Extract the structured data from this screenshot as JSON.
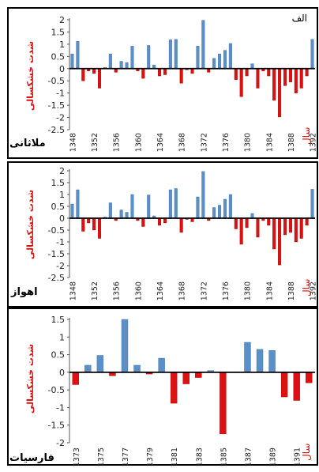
{
  "chart_data": [
    {
      "type": "bar",
      "panel_label": "الف",
      "station": "ملاثانی",
      "ylabel": "شدت خشکسالی",
      "xlabel": "سال",
      "ylim": [
        -2.5,
        2
      ],
      "yticks": [
        2,
        1.5,
        1,
        0.5,
        0,
        -0.5,
        -1,
        -1.5,
        -2,
        -2.5
      ],
      "x_tick_labels": [
        "1348",
        "1352",
        "1356",
        "1360",
        "1364",
        "1368",
        "1372",
        "1376",
        "1380",
        "1384",
        "1388",
        "1392"
      ],
      "colors": {
        "positive": "#5b8fc7",
        "negative": "#dd1111"
      },
      "x": [
        1348,
        1349,
        1350,
        1351,
        1352,
        1353,
        1354,
        1355,
        1356,
        1357,
        1358,
        1359,
        1360,
        1361,
        1362,
        1363,
        1364,
        1365,
        1366,
        1367,
        1368,
        1369,
        1370,
        1371,
        1372,
        1373,
        1374,
        1375,
        1376,
        1377,
        1378,
        1379,
        1380,
        1381,
        1382,
        1383,
        1384,
        1385,
        1386,
        1387,
        1388,
        1389,
        1390,
        1391,
        1392
      ],
      "values": [
        0.6,
        1.12,
        -0.5,
        -0.1,
        -0.2,
        -0.8,
        0.05,
        0.6,
        -0.15,
        0.3,
        0.25,
        0.92,
        -0.1,
        -0.4,
        0.95,
        0.15,
        -0.3,
        -0.25,
        1.18,
        1.2,
        -0.6,
        -0.05,
        -0.2,
        0.92,
        1.98,
        -0.15,
        0.42,
        0.6,
        0.75,
        1.03,
        -0.45,
        -1.15,
        -0.3,
        0.2,
        -0.8,
        -0.1,
        -0.3,
        -1.3,
        -1.98,
        -0.7,
        -0.55,
        -1.0,
        -0.8,
        -0.3,
        1.2
      ]
    },
    {
      "type": "bar",
      "panel_label": "",
      "station": "اهواز",
      "ylabel": "شدت خشکسالی",
      "xlabel": "سال",
      "ylim": [
        -2.5,
        2
      ],
      "yticks": [
        2,
        1.5,
        1,
        0.5,
        0,
        -0.5,
        -1,
        -1.5,
        -2,
        -2.5
      ],
      "x_tick_labels": [
        "1348",
        "1352",
        "1356",
        "1360",
        "1364",
        "1368",
        "1372",
        "1376",
        "1380",
        "1384",
        "1388",
        "1392"
      ],
      "colors": {
        "positive": "#5b8fc7",
        "negative": "#dd1111"
      },
      "x": [
        1348,
        1349,
        1350,
        1351,
        1352,
        1353,
        1354,
        1355,
        1356,
        1357,
        1358,
        1359,
        1360,
        1361,
        1362,
        1363,
        1364,
        1365,
        1366,
        1367,
        1368,
        1369,
        1370,
        1371,
        1372,
        1373,
        1374,
        1375,
        1376,
        1377,
        1378,
        1379,
        1380,
        1381,
        1382,
        1383,
        1384,
        1385,
        1386,
        1387,
        1388,
        1389,
        1390,
        1391,
        1392
      ],
      "values": [
        0.6,
        1.2,
        -0.55,
        -0.2,
        -0.5,
        -0.85,
        0.05,
        0.65,
        -0.1,
        0.35,
        0.25,
        1.0,
        -0.1,
        -0.35,
        0.98,
        0.1,
        -0.3,
        -0.2,
        1.2,
        1.25,
        -0.6,
        -0.05,
        -0.15,
        0.9,
        1.97,
        -0.1,
        0.45,
        0.55,
        0.8,
        1.0,
        -0.45,
        -1.1,
        -0.4,
        0.2,
        -0.8,
        -0.1,
        -0.3,
        -1.3,
        -1.97,
        -0.7,
        -0.6,
        -1.0,
        -0.85,
        -0.3,
        1.22
      ]
    },
    {
      "type": "bar",
      "panel_label": "",
      "station": "فارسیات",
      "ylabel": "شدت خشکسالی",
      "xlabel": "سال",
      "ylim": [
        -2,
        1.5
      ],
      "yticks": [
        1.5,
        1,
        0.5,
        0,
        -0.5,
        -1,
        -1.5,
        -2
      ],
      "x_tick_labels": [
        "1373",
        "1375",
        "1377",
        "1379",
        "1381",
        "1383",
        "1385",
        "1387",
        "1389",
        "1391"
      ],
      "colors": {
        "positive": "#5b8fc7",
        "negative": "#dd1111"
      },
      "x": [
        1373,
        1374,
        1375,
        1376,
        1377,
        1378,
        1379,
        1380,
        1381,
        1382,
        1383,
        1384,
        1385,
        1386,
        1387,
        1388,
        1389,
        1390,
        1391,
        1392
      ],
      "values": [
        -0.35,
        0.2,
        0.48,
        -0.1,
        1.5,
        0.2,
        -0.05,
        0.4,
        -0.88,
        -0.33,
        -0.15,
        0.05,
        -1.75,
        0.0,
        0.85,
        0.65,
        0.62,
        -0.7,
        -0.8,
        -0.3
      ]
    }
  ]
}
